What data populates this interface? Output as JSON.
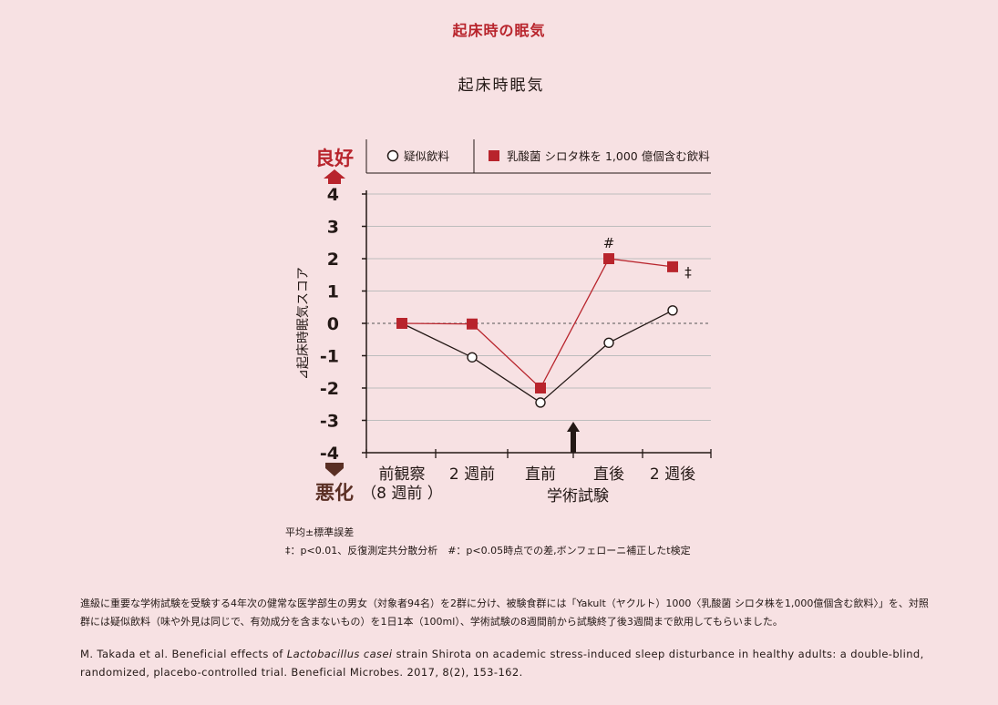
{
  "page_heading": "起床時の眠気",
  "chart_data": {
    "type": "line",
    "title": "起床時眠気",
    "ylabel": "⊿起床時眠気スコア",
    "xlabel": "学術試験",
    "ylim": [
      -4,
      4
    ],
    "yticks": [
      "4",
      "3",
      "2",
      "1",
      "0",
      "-1",
      "-2",
      "-3",
      "-4"
    ],
    "y_top_label": "良好",
    "y_bottom_label": "悪化",
    "categories": [
      {
        "label": "前観察",
        "sublabel": "（8 週前 ）"
      },
      {
        "label": "2 週前",
        "sublabel": ""
      },
      {
        "label": "直前",
        "sublabel": ""
      },
      {
        "label": "直後",
        "sublabel": ""
      },
      {
        "label": "2 週後",
        "sublabel": ""
      }
    ],
    "series": [
      {
        "name": "疑似飲料",
        "marker": "circle",
        "color": "#231815",
        "values": [
          0,
          -1.05,
          -2.45,
          -0.6,
          0.4
        ]
      },
      {
        "name": "乳酸菌 シロタ株を 1,000 億個含む飲料",
        "marker": "square",
        "color": "#b8242c",
        "values": [
          0,
          -0.02,
          -2.0,
          2.0,
          1.75
        ]
      }
    ],
    "annotations": [
      {
        "text": "#",
        "category_index": 3,
        "series_index": 1
      },
      {
        "text": "‡",
        "category_index": 4,
        "series_index": 1
      }
    ],
    "grid": true,
    "legend": "top",
    "arrow_marker": {
      "between": [
        2,
        3
      ],
      "meaning": "exam"
    }
  },
  "notes": {
    "line1": "平均±標準誤差",
    "line2": "‡：p<0.01、反復測定共分散分析　#：p<0.05時点での差,ボンフェローニ補正したt検定"
  },
  "description": "進級に重要な学術試験を受験する4年次の健常な医学部生の男女（対象者94名）を2群に分け、被験食群には「Yakult（ヤクルト）1000〈乳酸菌 シロタ株を1,000億個含む飲料〉」を、対照群には疑似飲料（味や外見は同じで、有効成分を含まないもの）を1日1本（100ml）、学術試験の8週間前から試験終了後3週間まで飲用してもらいました。",
  "citation": {
    "before": "M. Takada et al. Beneficial effects of ",
    "italic": "Lactobacillus casei",
    "after": " strain Shirota on academic stress-induced sleep disturbance in healthy adults: a double-blind, randomized, placebo-controlled trial. Beneficial Microbes. 2017, 8(2), 153-162."
  },
  "colors": {
    "accent": "#b8242c",
    "background": "#f7e1e3",
    "ink": "#231815",
    "grid": "#bdbdbd"
  }
}
